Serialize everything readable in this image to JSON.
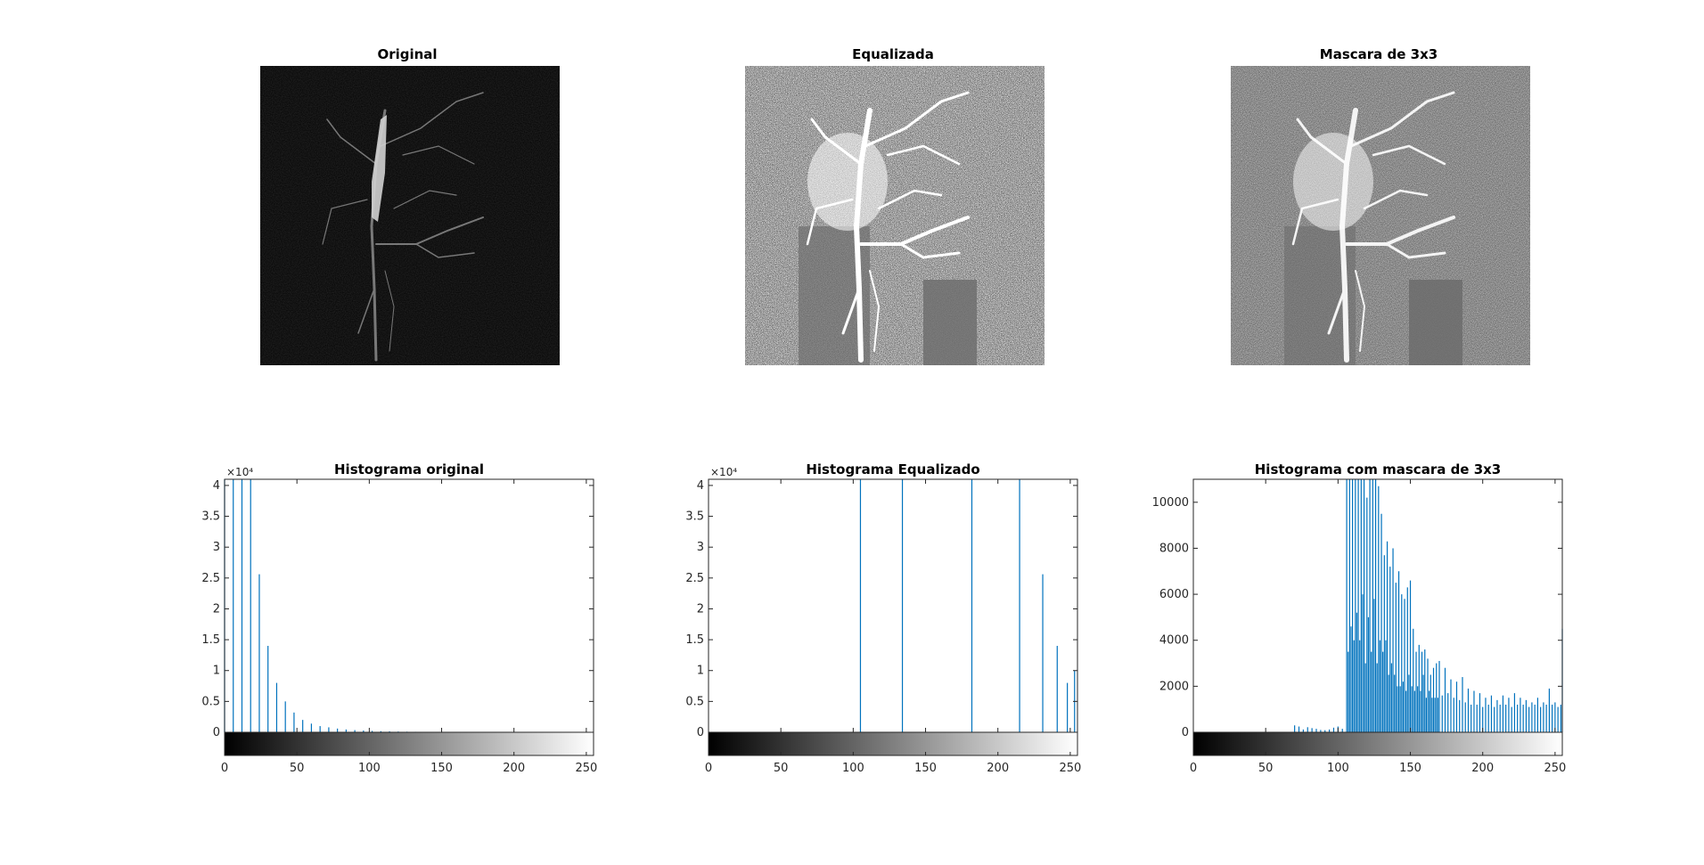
{
  "images": [
    {
      "title": "Original"
    },
    {
      "title": "Equalizada"
    },
    {
      "title": "Mascara de 3x3"
    }
  ],
  "chart_data": [
    {
      "type": "bar",
      "title": "Histograma original",
      "exponent_label": "×10⁴",
      "xlim": [
        0,
        255
      ],
      "ylim": [
        0,
        41000
      ],
      "xticks": [
        0,
        50,
        100,
        150,
        200,
        250
      ],
      "yticks": [
        0,
        5000,
        10000,
        15000,
        20000,
        25000,
        30000,
        35000,
        40000
      ],
      "ytick_labels": [
        "0",
        "0.5",
        "1",
        "1.5",
        "2",
        "2.5",
        "3",
        "3.5",
        "4"
      ],
      "x": [
        0,
        6,
        12,
        18,
        24,
        30,
        36,
        42,
        48,
        54,
        60,
        66,
        72,
        78,
        84,
        90,
        96,
        102,
        108,
        114,
        120,
        126,
        132,
        138,
        144
      ],
      "values": [
        41000,
        41000,
        41000,
        41000,
        25600,
        14000,
        8000,
        5000,
        3200,
        2000,
        1400,
        1000,
        800,
        600,
        450,
        350,
        280,
        220,
        180,
        150,
        120,
        100,
        80,
        60,
        40
      ],
      "colorbar": "gray"
    },
    {
      "type": "bar",
      "title": "Histograma Equalizado",
      "exponent_label": "×10⁴",
      "xlim": [
        0,
        255
      ],
      "ylim": [
        0,
        41000
      ],
      "xticks": [
        0,
        50,
        100,
        150,
        200,
        250
      ],
      "yticks": [
        0,
        5000,
        10000,
        15000,
        20000,
        25000,
        30000,
        35000,
        40000
      ],
      "ytick_labels": [
        "0",
        "0.5",
        "1",
        "1.5",
        "2",
        "2.5",
        "3",
        "3.5",
        "4"
      ],
      "x": [
        105,
        134,
        182,
        215,
        231,
        241,
        248,
        253
      ],
      "values": [
        41000,
        41000,
        41000,
        41000,
        25600,
        14000,
        8000,
        10000
      ],
      "colorbar": "gray"
    },
    {
      "type": "bar",
      "title": "Histograma com mascara de 3x3",
      "xlim": [
        0,
        255
      ],
      "ylim": [
        0,
        11000
      ],
      "xticks": [
        0,
        50,
        100,
        150,
        200,
        250
      ],
      "yticks": [
        0,
        2000,
        4000,
        6000,
        8000,
        10000
      ],
      "ytick_labels": [
        "0",
        "2000",
        "4000",
        "6000",
        "8000",
        "10000"
      ],
      "x": [
        70,
        73,
        76,
        79,
        82,
        85,
        88,
        91,
        94,
        97,
        100,
        103,
        106,
        107,
        108,
        109,
        110,
        111,
        112,
        113,
        114,
        115,
        116,
        117,
        118,
        119,
        120,
        121,
        122,
        123,
        124,
        125,
        126,
        127,
        128,
        129,
        130,
        131,
        132,
        133,
        134,
        135,
        136,
        137,
        138,
        139,
        140,
        141,
        142,
        143,
        144,
        145,
        146,
        147,
        148,
        149,
        150,
        151,
        152,
        153,
        154,
        155,
        156,
        157,
        158,
        159,
        160,
        161,
        162,
        163,
        164,
        165,
        166,
        167,
        168,
        169,
        170,
        172,
        174,
        176,
        178,
        180,
        182,
        184,
        186,
        188,
        190,
        192,
        194,
        196,
        198,
        200,
        202,
        204,
        206,
        208,
        210,
        212,
        214,
        216,
        218,
        220,
        222,
        224,
        226,
        228,
        230,
        232,
        234,
        236,
        238,
        240,
        242,
        244,
        246,
        248,
        250,
        252,
        254,
        255
      ],
      "values": [
        300,
        250,
        120,
        220,
        180,
        150,
        100,
        90,
        120,
        200,
        250,
        150,
        11000,
        3500,
        11000,
        4600,
        11000,
        4000,
        11000,
        5200,
        11000,
        4000,
        11000,
        6000,
        11000,
        3000,
        10200,
        5000,
        11000,
        3500,
        11000,
        5800,
        11000,
        3000,
        10700,
        4000,
        9500,
        3500,
        7700,
        4000,
        8300,
        2500,
        7200,
        3000,
        8000,
        2500,
        6500,
        2000,
        7000,
        2000,
        6000,
        2200,
        5800,
        1800,
        6300,
        2500,
        6600,
        2000,
        4500,
        1800,
        3500,
        2000,
        3800,
        1800,
        3500,
        2500,
        3600,
        1500,
        3200,
        1800,
        2500,
        1500,
        2800,
        1500,
        3000,
        1500,
        3100,
        1600,
        2800,
        1700,
        2300,
        1500,
        2200,
        1400,
        2400,
        1300,
        1900,
        1200,
        1800,
        1200,
        1700,
        1100,
        1500,
        1200,
        1600,
        1100,
        1400,
        1200,
        1600,
        1200,
        1500,
        1100,
        1700,
        1200,
        1500,
        1200,
        1400,
        1100,
        1300,
        1200,
        1500,
        1100,
        1300,
        1200,
        1900,
        1200,
        1300,
        1100,
        1200,
        4500
      ],
      "colorbar": "gray"
    }
  ]
}
